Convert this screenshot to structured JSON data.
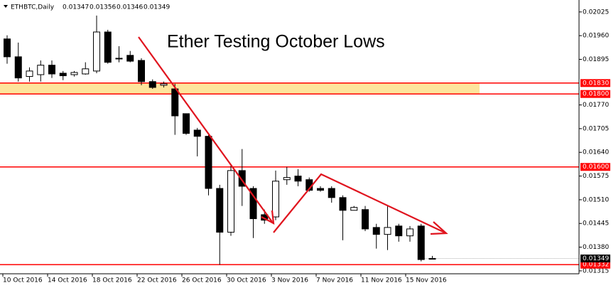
{
  "chart_data": {
    "type": "candlestick",
    "symbol": "ETHBTC,Daily",
    "title": "Ether Testing October Lows",
    "categories": [
      "10 Oct 2016",
      null,
      null,
      null,
      "14 Oct 2016",
      null,
      null,
      null,
      "18 Oct 2016",
      null,
      null,
      null,
      "22 Oct 2016",
      null,
      null,
      null,
      "26 Oct 2016",
      null,
      null,
      null,
      "30 Oct 2016",
      null,
      null,
      null,
      "3 Nov 2016",
      null,
      null,
      null,
      "7 Nov 2016",
      null,
      null,
      null,
      "11 Nov 2016",
      null,
      null,
      null,
      "15 Nov 2016",
      null,
      null
    ],
    "open": [
      0.01951,
      0.01902,
      0.01848,
      0.01853,
      0.01879,
      0.01857,
      0.01853,
      0.01855,
      0.01863,
      0.0197,
      0.01896,
      0.01906,
      0.01892,
      0.01834,
      0.01824,
      0.01814,
      0.01746,
      0.01701,
      0.01684,
      0.01541,
      0.01421,
      0.0159,
      0.01541,
      0.01469,
      0.01463,
      0.01565,
      0.01575,
      0.01565,
      0.01541,
      0.01541,
      0.01516,
      0.01481,
      0.01483,
      0.01434,
      0.01415,
      0.01438,
      0.01411,
      0.01438,
      0.01347
    ],
    "high": [
      0.01961,
      0.01941,
      0.01873,
      0.01892,
      0.01892,
      0.01863,
      0.01863,
      0.01887,
      0.02015,
      0.01976,
      0.01931,
      0.01918,
      0.01898,
      0.0184,
      0.01834,
      0.01828,
      0.01746,
      0.01707,
      0.01688,
      0.01551,
      0.01606,
      0.01649,
      0.01547,
      0.01483,
      0.0159,
      0.016,
      0.01594,
      0.01571,
      0.01547,
      0.01547,
      0.01522,
      0.01493,
      0.01493,
      0.01444,
      0.01493,
      0.01444,
      0.01438,
      0.01444,
      0.01356
    ],
    "low": [
      0.01883,
      0.01834,
      0.01834,
      0.01834,
      0.01844,
      0.01838,
      0.01848,
      0.01853,
      0.01857,
      0.01883,
      0.01887,
      0.01887,
      0.01824,
      0.01814,
      0.01818,
      0.01688,
      0.01688,
      0.01629,
      0.01522,
      0.01332,
      0.01411,
      0.01493,
      0.01405,
      0.01444,
      0.01454,
      0.01551,
      0.01547,
      0.01532,
      0.01532,
      0.01502,
      0.01399,
      0.01481,
      0.01424,
      0.01376,
      0.01372,
      0.01395,
      0.01395,
      0.01341,
      0.01346
    ],
    "close": [
      0.01902,
      0.01844,
      0.01863,
      0.01879,
      0.01855,
      0.0185,
      0.01859,
      0.01869,
      0.0197,
      0.01887,
      0.01898,
      0.0189,
      0.01834,
      0.01818,
      0.01828,
      0.0174,
      0.01692,
      0.01684,
      0.01541,
      0.01421,
      0.0159,
      0.01547,
      0.01458,
      0.01454,
      0.01561,
      0.01571,
      0.01561,
      0.01536,
      0.01536,
      0.01516,
      0.01481,
      0.01489,
      0.0143,
      0.01415,
      0.01434,
      0.01411,
      0.0143,
      0.01346,
      0.01349
    ],
    "up_color": "#ffffff",
    "down_color": "#000000",
    "ylim": [
      0.01307,
      0.02048
    ],
    "yticks": [
      0.02025,
      {
        "value": 0.0196,
        "label": "0.01960"
      },
      0.01895,
      {
        "value": 0.0177,
        "label": "0.01770"
      },
      0.01705,
      {
        "value": 0.0164,
        "label": "0.01640"
      },
      0.01575,
      {
        "value": 0.0151,
        "label": "0.01510"
      },
      0.01445,
      {
        "value": 0.0138,
        "label": "0.01380"
      },
      0.01315
    ],
    "levels": [
      {
        "value": 0.0183,
        "label": "0.01830"
      },
      {
        "value": 0.018,
        "label": "0.01800"
      },
      {
        "value": 0.016,
        "label": "0.01600"
      },
      {
        "value": 0.01332,
        "label": "0.01332"
      }
    ],
    "level_color": "#ff0000",
    "zone_color": "#fde49c",
    "grid": false
  }
}
